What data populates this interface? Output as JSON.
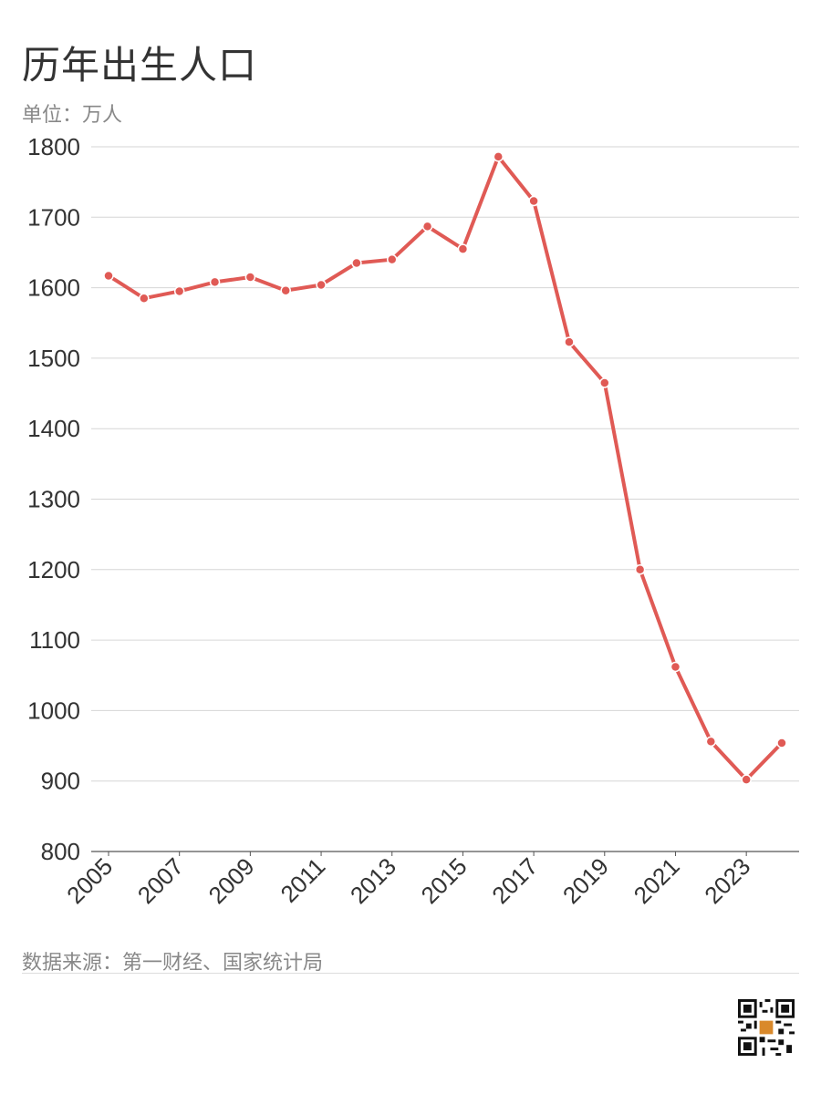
{
  "title": "历年出生人口",
  "unit_label": "单位：万人",
  "source": "数据来源：第一财经、国家统计局",
  "chart_data": {
    "type": "line",
    "title": "历年出生人口",
    "ylabel": "单位：万人",
    "xlabel": "",
    "x": [
      2005,
      2006,
      2007,
      2008,
      2009,
      2010,
      2011,
      2012,
      2013,
      2014,
      2015,
      2016,
      2017,
      2018,
      2019,
      2020,
      2021,
      2022,
      2023,
      2024
    ],
    "values": [
      1617,
      1585,
      1595,
      1608,
      1615,
      1596,
      1604,
      1635,
      1640,
      1687,
      1655,
      1786,
      1723,
      1523,
      1465,
      1200,
      1062,
      956,
      902,
      954
    ],
    "ylim": [
      800,
      1800
    ],
    "yticks": [
      "800",
      "900",
      "1000",
      "1100",
      "1200",
      "1300",
      "1400",
      "1500",
      "1600",
      "1700",
      "1800"
    ],
    "xticks": [
      "2005",
      "2007",
      "2009",
      "2011",
      "2013",
      "2015",
      "2017",
      "2019",
      "2021",
      "2023"
    ],
    "grid": "horizontal",
    "line_color": "#e05a55",
    "marker_color": "#e05a55"
  }
}
